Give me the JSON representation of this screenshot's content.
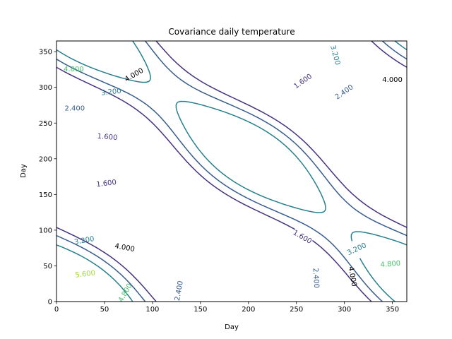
{
  "chart_data": {
    "type": "contour",
    "title": "Covariance daily temperature",
    "xlabel": "Day",
    "ylabel": "Day",
    "xlim": [
      0,
      365
    ],
    "ylim": [
      0,
      365
    ],
    "xticks": [
      "0",
      "50",
      "100",
      "150",
      "200",
      "250",
      "300",
      "350"
    ],
    "yticks": [
      "0",
      "50",
      "100",
      "150",
      "200",
      "250",
      "300",
      "350"
    ],
    "contour_levels": [
      1.6,
      2.4,
      3.2,
      4.0,
      4.8,
      5.6
    ],
    "level_colors": {
      "1.6": "#46327e",
      "2.4": "#365c8d",
      "3.2": "#277f8e",
      "4.0": "#1fa187",
      "4.8": "#4ac16d",
      "5.6": "#a0da39"
    },
    "contour_labels": [
      {
        "text": "1.600",
        "level": 1.6,
        "x": 53,
        "y": 230,
        "rotation": -5
      },
      {
        "text": "1.600",
        "level": 1.6,
        "x": 52,
        "y": 165,
        "rotation": 7
      },
      {
        "text": "1.600",
        "level": 1.6,
        "x": 257,
        "y": 308,
        "rotation": 35
      },
      {
        "text": "1.600",
        "level": 1.6,
        "x": 256,
        "y": 90,
        "rotation": -30
      },
      {
        "text": "2.400",
        "level": 2.4,
        "x": 19,
        "y": 270,
        "rotation": 0
      },
      {
        "text": "2.400",
        "level": 2.4,
        "x": 300,
        "y": 293,
        "rotation": 35
      },
      {
        "text": "2.400",
        "level": 2.4,
        "x": 128,
        "y": 15,
        "rotation": 80
      },
      {
        "text": "2.400",
        "level": 2.4,
        "x": 270,
        "y": 33,
        "rotation": -87
      },
      {
        "text": "3.200",
        "level": 3.2,
        "x": 57,
        "y": 293,
        "rotation": 6
      },
      {
        "text": "3.200",
        "level": 3.2,
        "x": 29,
        "y": 85,
        "rotation": 10
      },
      {
        "text": "3.200",
        "level": 3.2,
        "x": 290,
        "y": 345,
        "rotation": -75
      },
      {
        "text": "3.200",
        "level": 3.2,
        "x": 313,
        "y": 73,
        "rotation": 25
      },
      {
        "text": "4.000",
        "level": 4.0,
        "x": 81,
        "y": 317,
        "rotation": 30
      },
      {
        "text": "4.000",
        "level": 4.0,
        "x": 71,
        "y": 75,
        "rotation": -10
      },
      {
        "text": "4.000",
        "level": 4.0,
        "x": 350,
        "y": 310,
        "rotation": 0
      },
      {
        "text": "4.000",
        "level": 4.0,
        "x": 308,
        "y": 35,
        "rotation": -80
      },
      {
        "text": "4.800",
        "level": 4.8,
        "x": 18,
        "y": 325,
        "rotation": 0
      },
      {
        "text": "4.800",
        "level": 4.8,
        "x": 72,
        "y": 12,
        "rotation": 60
      },
      {
        "text": "4.800",
        "level": 4.8,
        "x": 348,
        "y": 52,
        "rotation": 5
      },
      {
        "text": "5.600",
        "level": 5.6,
        "x": 30,
        "y": 38,
        "rotation": 7
      }
    ]
  }
}
